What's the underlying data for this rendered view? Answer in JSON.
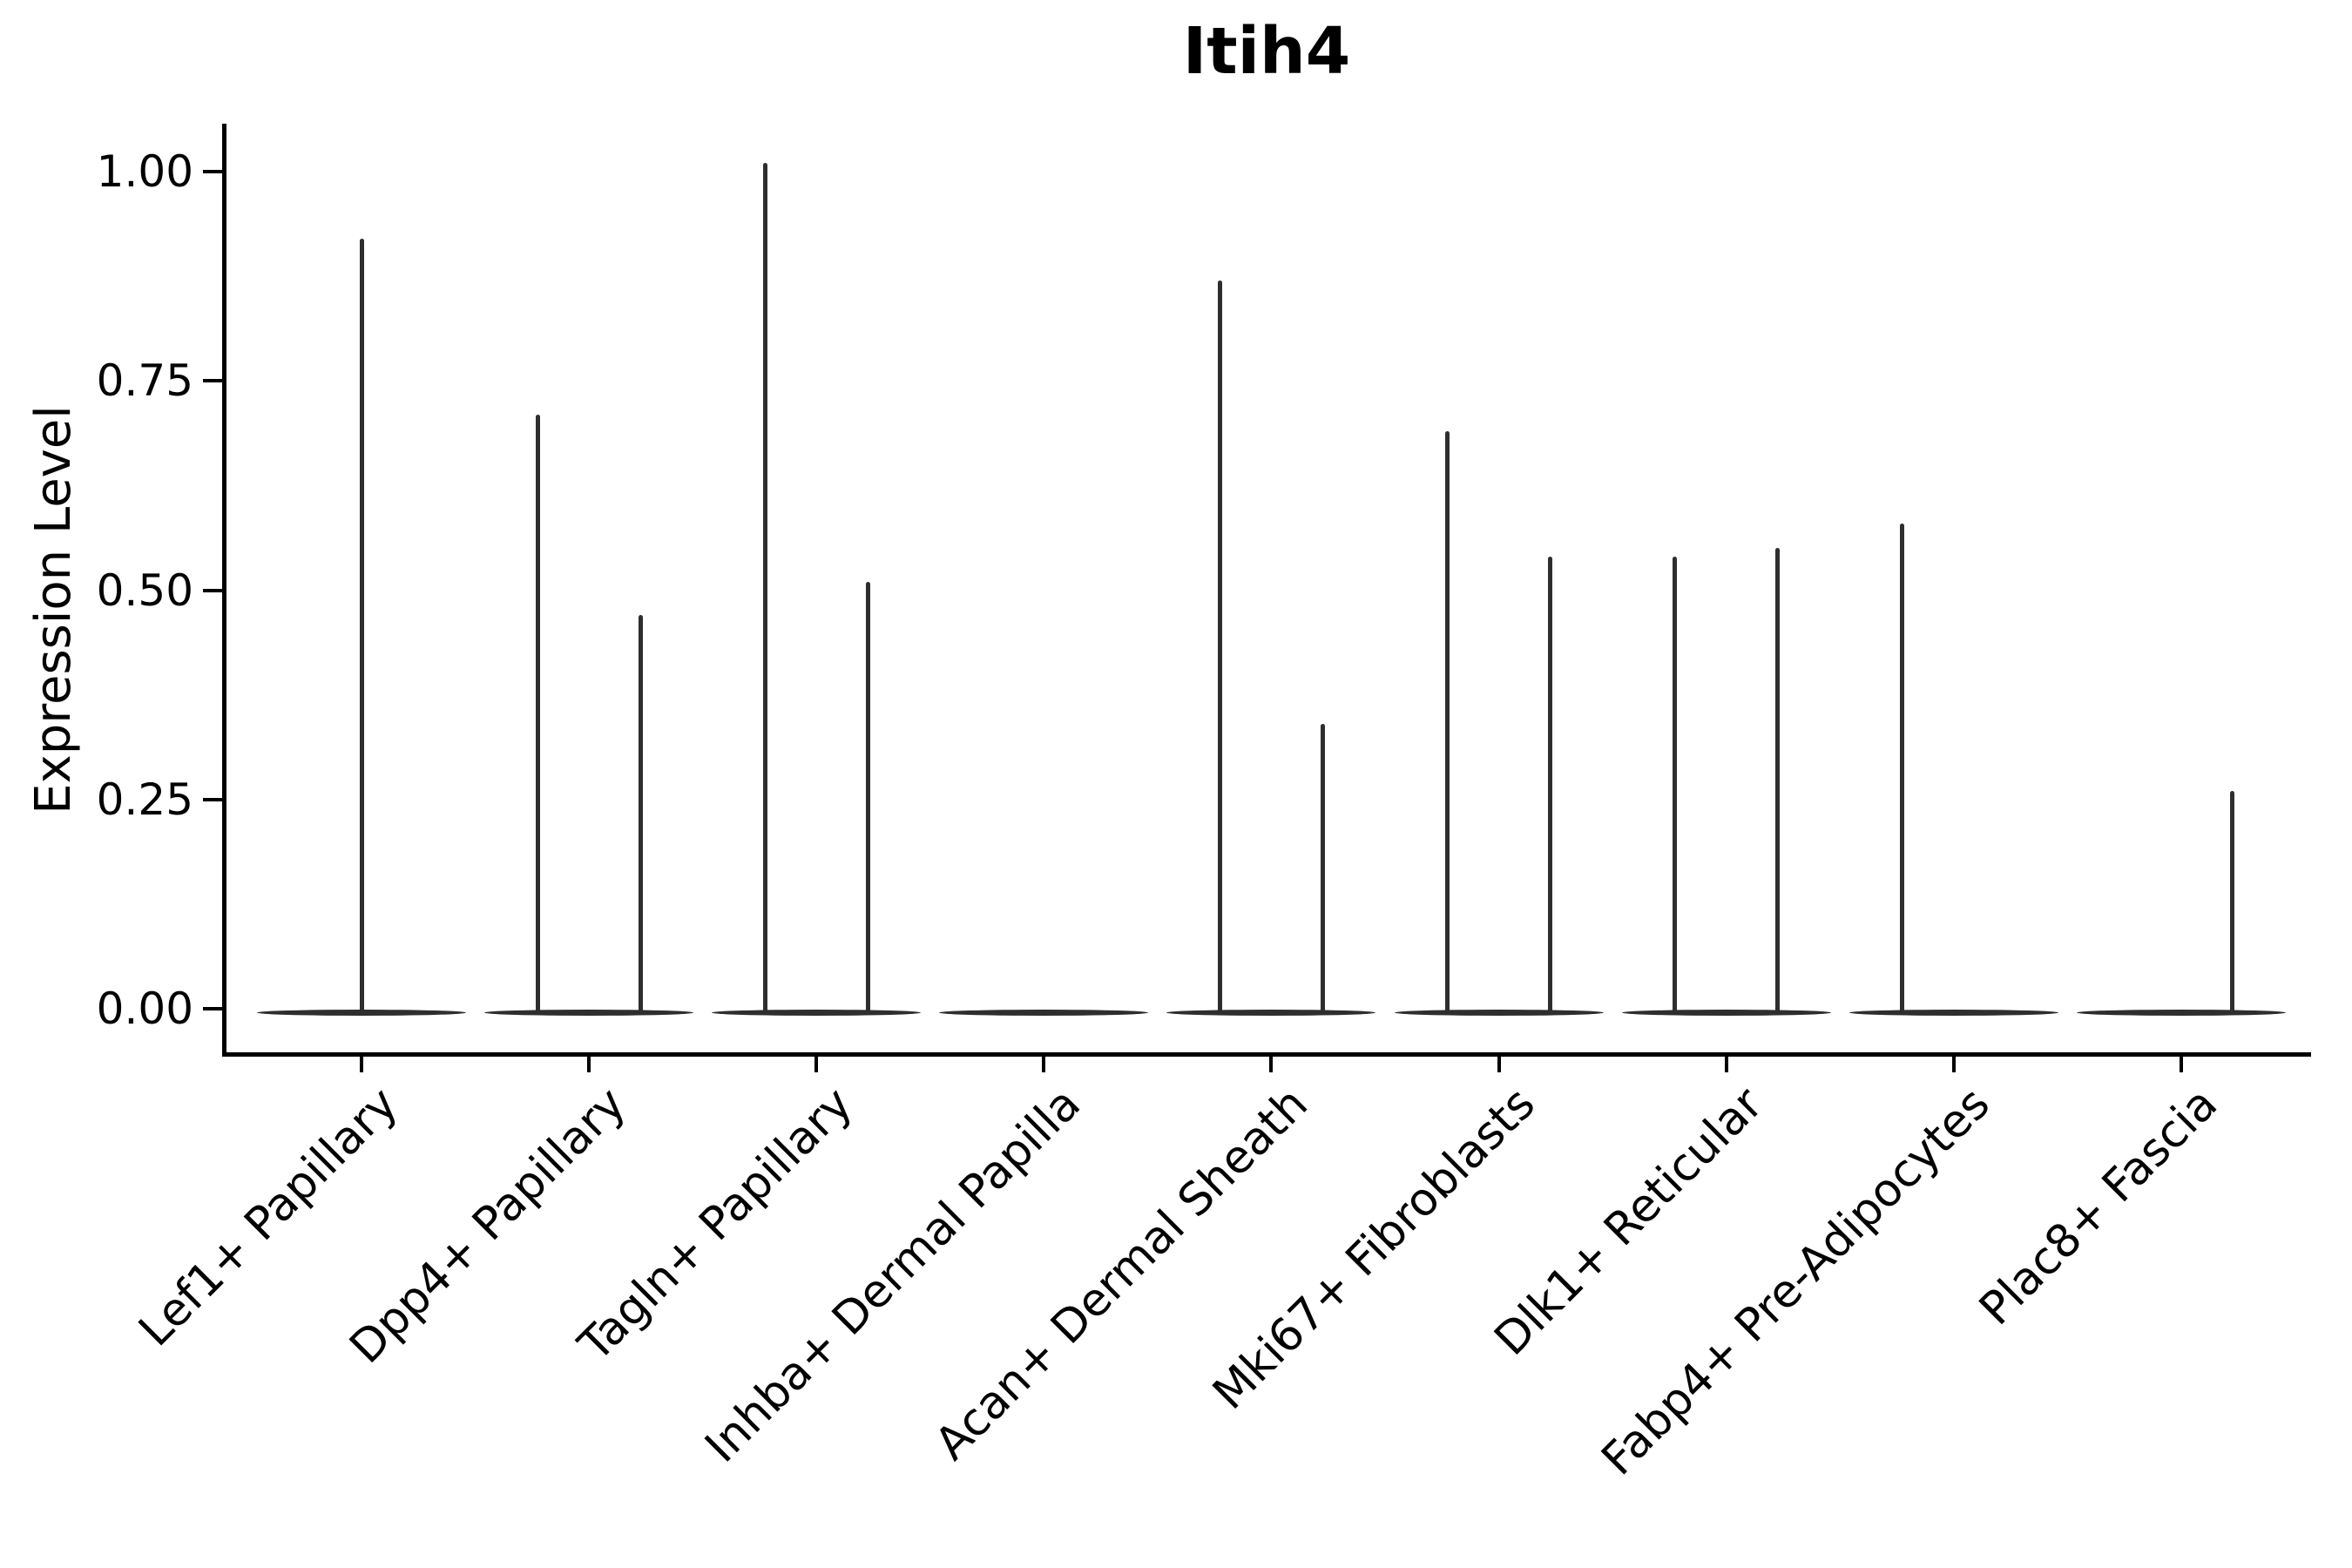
{
  "title": "Itih4",
  "y_axis": {
    "label": "Expression Level",
    "tick_labels": [
      "0.00",
      "0.25",
      "0.50",
      "0.75",
      "1.00"
    ]
  },
  "x_axis": {
    "categories": [
      "Lef1+ Papillary",
      "Dpp4+ Papillary",
      "Tagln+ Papillary",
      "Inhba+ Dermal Papilla",
      "Acan+ Dermal Sheath",
      "Mki67+ Fibroblasts",
      "Dlk1+ Reticular",
      "Fabp4+ Pre-Adipocytes",
      "Plac8+ Fascia"
    ]
  },
  "chart_data": {
    "type": "violin",
    "title": "Itih4",
    "xlabel": "",
    "ylabel": "Expression Level",
    "ylim": [
      0,
      1.06
    ],
    "yticks": [
      0.0,
      0.25,
      0.5,
      0.75,
      1.0
    ],
    "ytick_labels": [
      "0.00",
      "0.25",
      "0.50",
      "0.75",
      "1.00"
    ],
    "grid": false,
    "legend": "none",
    "categories": [
      "Lef1+ Papillary",
      "Dpp4+ Papillary",
      "Tagln+ Papillary",
      "Inhba+ Dermal Papilla",
      "Acan+ Dermal Sheath",
      "Mki67+ Fibroblasts",
      "Dlk1+ Reticular",
      "Fabp4+ Pre-Adipocytes",
      "Plac8+ Fascia"
    ],
    "description": "Collapsed violins: bulk of cells at expression 0 (horizontal lens-shaped blob per group), thin vertical tails rising to the maximum expression value; two side-by-side sub-violins per group where two spikes are shown",
    "groups": [
      {
        "category": "Lef1+ Papillary",
        "baseline": 0,
        "spikes": [
          {
            "position": "center",
            "max": 0.92
          }
        ]
      },
      {
        "category": "Dpp4+ Papillary",
        "baseline": 0,
        "spikes": [
          {
            "position": "left",
            "max": 0.71
          },
          {
            "position": "right",
            "max": 0.47
          }
        ]
      },
      {
        "category": "Tagln+ Papillary",
        "baseline": 0,
        "spikes": [
          {
            "position": "left",
            "max": 1.01
          },
          {
            "position": "right",
            "max": 0.51
          }
        ]
      },
      {
        "category": "Inhba+ Dermal Papilla",
        "baseline": 0,
        "spikes": []
      },
      {
        "category": "Acan+ Dermal Sheath",
        "baseline": 0,
        "spikes": [
          {
            "position": "left",
            "max": 0.87
          },
          {
            "position": "right",
            "max": 0.34
          }
        ]
      },
      {
        "category": "Mki67+ Fibroblasts",
        "baseline": 0,
        "spikes": [
          {
            "position": "left",
            "max": 0.69
          },
          {
            "position": "right",
            "max": 0.54
          }
        ]
      },
      {
        "category": "Dlk1+ Reticular",
        "baseline": 0,
        "spikes": [
          {
            "position": "left",
            "max": 0.54
          },
          {
            "position": "right",
            "max": 0.55
          }
        ]
      },
      {
        "category": "Fabp4+ Pre-Adipocytes",
        "baseline": 0,
        "spikes": [
          {
            "position": "left",
            "max": 0.58
          }
        ]
      },
      {
        "category": "Plac8+ Fascia",
        "baseline": 0,
        "spikes": [
          {
            "position": "right",
            "max": 0.26
          }
        ]
      }
    ],
    "colors": {
      "violin": "#2e2e2e",
      "axis": "#000000",
      "text": "#000000",
      "background": "#ffffff"
    }
  }
}
